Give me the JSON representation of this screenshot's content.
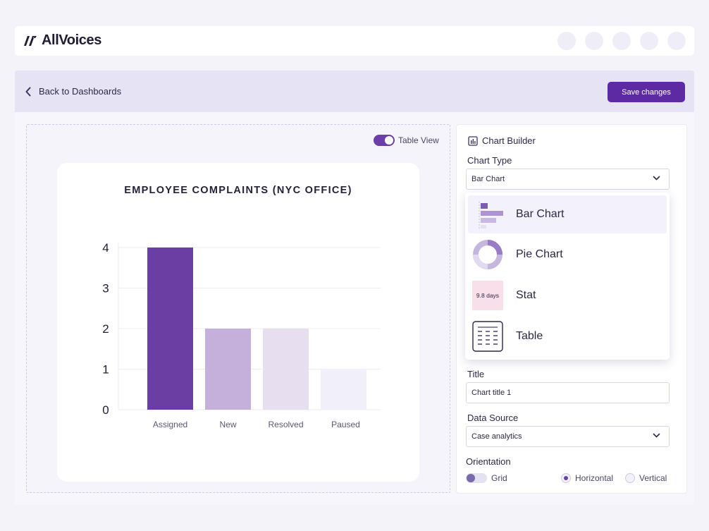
{
  "app": {
    "name": "AllVoices"
  },
  "header": {
    "avatar_count": 5
  },
  "nav": {
    "back_label": "Back to Dashboards",
    "save_label": "Save changes"
  },
  "canvas": {
    "toggle_label": "Table View",
    "toggle_on": true
  },
  "chart_data": {
    "type": "bar",
    "title": "EMPLOYEE COMPLAINTS (NYC OFFICE)",
    "categories": [
      "Assigned",
      "New",
      "Resolved",
      "Paused"
    ],
    "values": [
      4,
      2,
      2,
      1
    ],
    "colors": [
      "#6a3ea3",
      "#c4b0da",
      "#e7dff0",
      "#f1eff9"
    ],
    "yticks": [
      "0",
      "1",
      "2",
      "3",
      "4"
    ],
    "ylim": [
      0,
      4
    ],
    "xlabel": "",
    "ylabel": "",
    "grid": true
  },
  "builder": {
    "title": "Chart Builder",
    "chart_type_label": "Chart Type",
    "chart_type_value": "Bar Chart",
    "dropdown": [
      {
        "label": "Bar Chart",
        "icon": "bar-chart-icon"
      },
      {
        "label": "Pie Chart",
        "icon": "pie-chart-icon"
      },
      {
        "label": "Stat",
        "icon": "stat-icon",
        "icon_text": "9.8 days"
      },
      {
        "label": "Table",
        "icon": "table-icon"
      }
    ],
    "title_label": "Title",
    "title_value": "Chart title 1",
    "data_source_label": "Data Source",
    "data_source_value": "Case analytics",
    "orientation_label": "Orientation",
    "grid_label": "Grid",
    "horizontal_label": "Horizontal",
    "vertical_label": "Vertical",
    "orientation_selected": "Horizontal"
  },
  "colors": {
    "accent": "#5e2aa3",
    "nav_bg": "#e6e3f5"
  }
}
